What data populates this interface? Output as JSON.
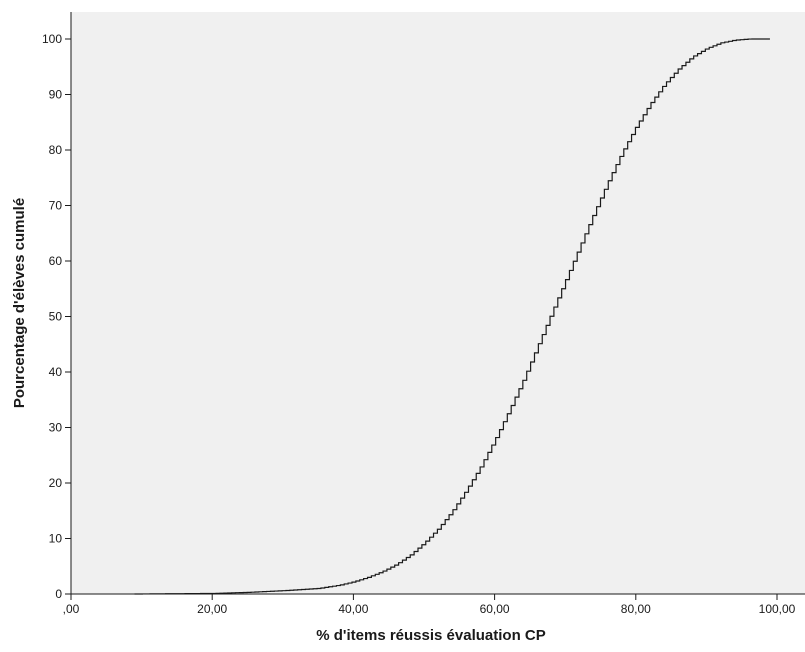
{
  "chart_data": {
    "type": "line",
    "title": "",
    "xlabel": "% d'items réussis évaluation CP",
    "ylabel": "Pourcentage d'élèves cumulé",
    "xlim": [
      0,
      100
    ],
    "ylim": [
      0,
      100
    ],
    "x_ticks": [
      0,
      20,
      40,
      60,
      80,
      100
    ],
    "x_tick_labels": [
      ",00",
      "20,00",
      "40,00",
      "60,00",
      "80,00",
      "100,00"
    ],
    "y_ticks": [
      0,
      10,
      20,
      30,
      40,
      50,
      60,
      70,
      80,
      90,
      100
    ],
    "y_tick_labels": [
      "0",
      "10",
      "20",
      "30",
      "40",
      "50",
      "60",
      "70",
      "80",
      "90",
      "100"
    ],
    "grid": false,
    "legend": "none",
    "plot_background": "#f0f0f0",
    "line_color": "#1a1a1a",
    "step": true,
    "series": [
      {
        "x": [
          9,
          20,
          25,
          30,
          35,
          38,
          40,
          42,
          44,
          46,
          48,
          50,
          52,
          54,
          56,
          58,
          60,
          62,
          64,
          66,
          68,
          70,
          72,
          74,
          76,
          78,
          80,
          82,
          84,
          86,
          88,
          90,
          92,
          94,
          96,
          98,
          99
        ],
        "y": [
          0,
          0.1,
          0.3,
          0.6,
          1.0,
          1.6,
          2.2,
          3.0,
          4.0,
          5.3,
          7.0,
          9.2,
          11.8,
          15.0,
          18.8,
          23.0,
          27.8,
          33.0,
          38.5,
          44.5,
          50.5,
          56.5,
          62.5,
          68.5,
          74.2,
          79.5,
          84.2,
          88.3,
          91.8,
          94.6,
          96.8,
          98.3,
          99.3,
          99.8,
          100,
          100,
          100
        ]
      }
    ]
  }
}
